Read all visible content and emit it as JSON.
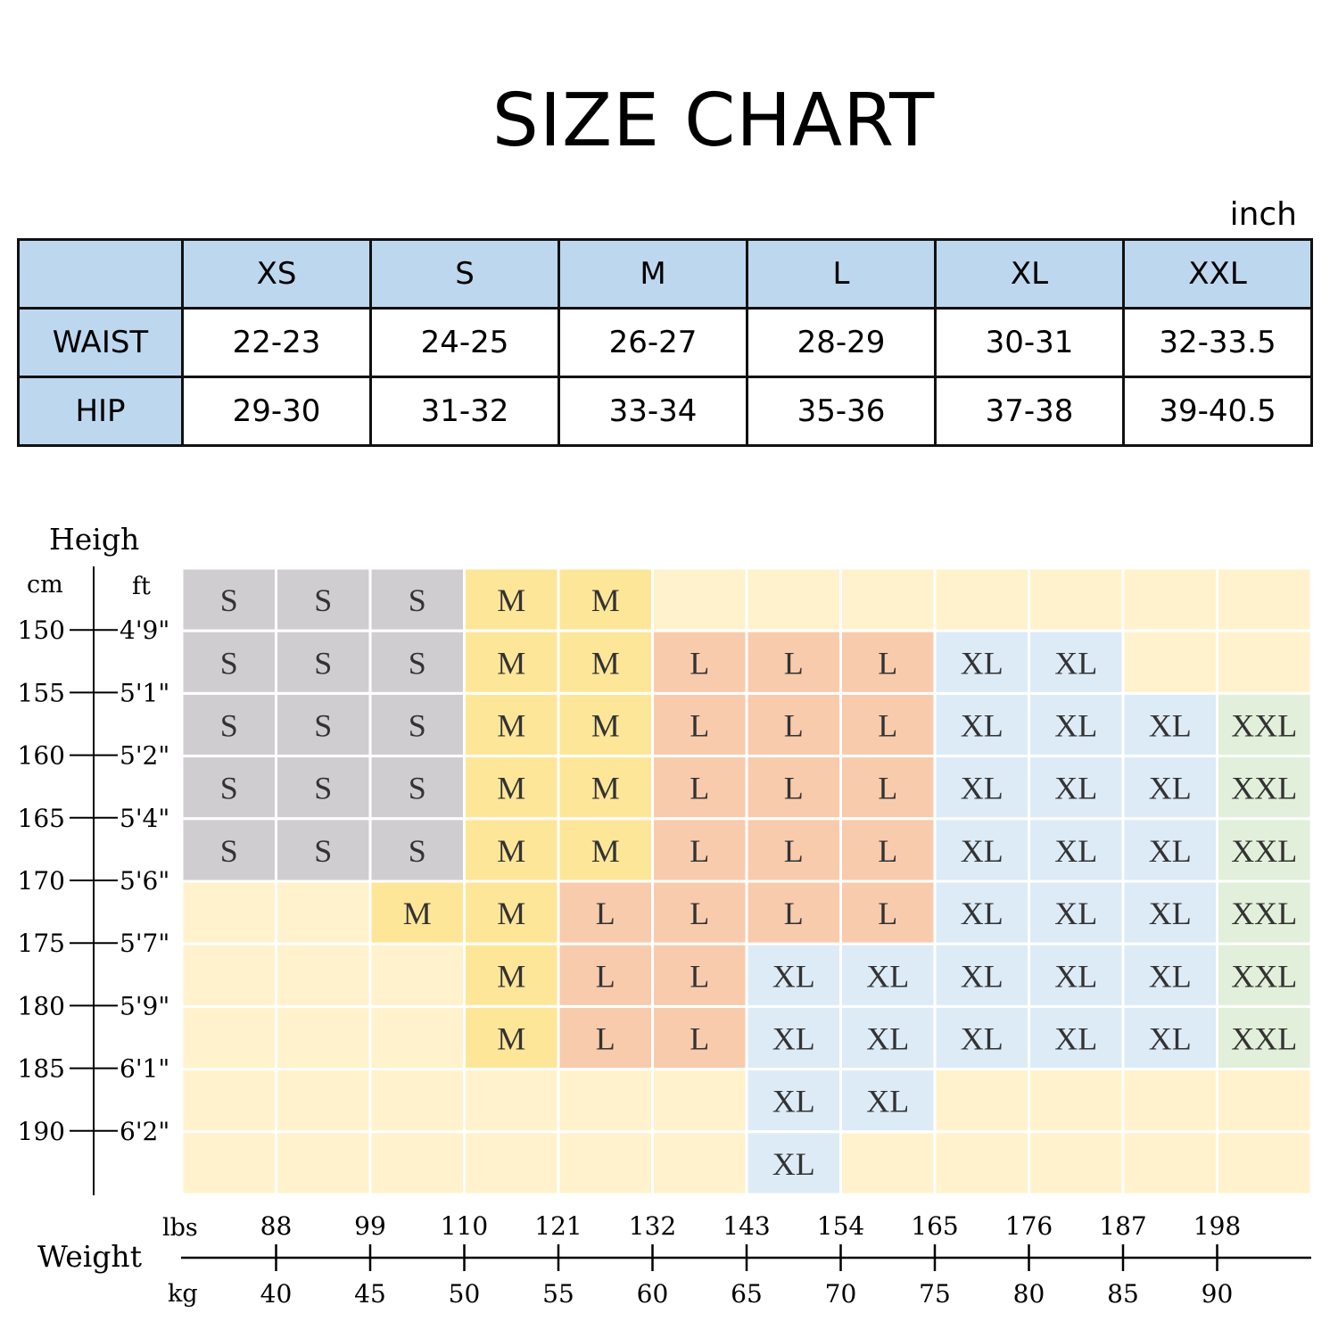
{
  "title": "SIZE  CHART",
  "unit": "inch",
  "measurements": {
    "columns": [
      "XS",
      "S",
      "M",
      "L",
      "XL",
      "XXL"
    ],
    "rows": [
      {
        "label": "WAIST",
        "values": [
          "22-23",
          "24-25",
          "26-27",
          "28-29",
          "30-31",
          "32-33.5"
        ]
      },
      {
        "label": "HIP",
        "values": [
          "29-30",
          "31-32",
          "33-34",
          "35-36",
          "37-38",
          "39-40.5"
        ]
      }
    ]
  },
  "chart_data": {
    "type": "heatmap",
    "height_axis_label": "Heigh",
    "cm_label": "cm",
    "ft_label": "ft",
    "weight_axis_label": "Weight",
    "lbs_label": "lbs",
    "kg_label": "kg",
    "cm_ticks": [
      "150",
      "155",
      "160",
      "165",
      "170",
      "175",
      "180",
      "185",
      "190"
    ],
    "ft_ticks": [
      "4'9\"",
      "5'1\"",
      "5'2\"",
      "5'4\"",
      "5'6\"",
      "5'7\"",
      "5'9\"",
      "6'1\"",
      "6'2\""
    ],
    "lbs_ticks": [
      "88",
      "99",
      "110",
      "121",
      "132",
      "143",
      "154",
      "165",
      "176",
      "187",
      "198"
    ],
    "kg_ticks": [
      "40",
      "45",
      "50",
      "55",
      "60",
      "65",
      "70",
      "75",
      "80",
      "85",
      "90"
    ],
    "grid": [
      [
        "S",
        "S",
        "S",
        "M",
        "M",
        "",
        "",
        "",
        "",
        "",
        "",
        ""
      ],
      [
        "S",
        "S",
        "S",
        "M",
        "M",
        "L",
        "L",
        "L",
        "XL",
        "XL",
        "",
        ""
      ],
      [
        "S",
        "S",
        "S",
        "M",
        "M",
        "L",
        "L",
        "L",
        "XL",
        "XL",
        "XL",
        "XXL"
      ],
      [
        "S",
        "S",
        "S",
        "M",
        "M",
        "L",
        "L",
        "L",
        "XL",
        "XL",
        "XL",
        "XXL"
      ],
      [
        "S",
        "S",
        "S",
        "M",
        "M",
        "L",
        "L",
        "L",
        "XL",
        "XL",
        "XL",
        "XXL"
      ],
      [
        "",
        "",
        "M",
        "M",
        "L",
        "L",
        "L",
        "L",
        "XL",
        "XL",
        "XL",
        "XXL"
      ],
      [
        "",
        "",
        "",
        "M",
        "L",
        "L",
        "XL",
        "XL",
        "XL",
        "XL",
        "XL",
        "XXL"
      ],
      [
        "",
        "",
        "",
        "M",
        "L",
        "L",
        "XL",
        "XL",
        "XL",
        "XL",
        "XL",
        "XXL"
      ],
      [
        "",
        "",
        "",
        "",
        "",
        "",
        "XL",
        "XL",
        "",
        "",
        "",
        ""
      ],
      [
        "",
        "",
        "",
        "",
        "",
        "",
        "XL",
        "",
        "",
        "",
        "",
        ""
      ]
    ],
    "size_colors": {
      "S": "#d0cdd0",
      "M": "#fee699",
      "L": "#f8cbad",
      "XL": "#ddebf7",
      "XXL": "#e2efda",
      "empty": "#fff2cc"
    }
  }
}
